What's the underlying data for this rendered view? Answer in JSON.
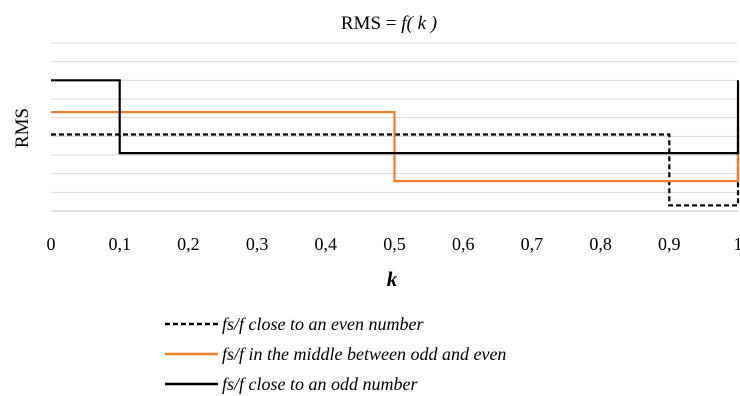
{
  "chart_data": {
    "type": "line",
    "title": "RMS = f( k )",
    "title_prefix": "RMS = ",
    "title_func": "f( k )",
    "xlabel": "k",
    "ylabel": "RMS",
    "xlim": [
      0,
      1
    ],
    "ylim": [
      0,
      9
    ],
    "x_ticks": [
      "0",
      "0,1",
      "0,2",
      "0,3",
      "0,4",
      "0,5",
      "0,6",
      "0,7",
      "0,8",
      "0,9",
      "1"
    ],
    "y_tick_labels": false,
    "grid": "horizontal",
    "legend_position": "bottom",
    "series": [
      {
        "name": "fs/f close to an even number",
        "style": "dashed",
        "color": "#000000",
        "x": [
          0,
          0.9,
          0.9,
          1.0,
          1.0
        ],
        "y": [
          4.1,
          4.1,
          0.3,
          0.3,
          4.5
        ]
      },
      {
        "name": "fs/f in the middle between odd and even",
        "style": "solid",
        "color": "#ED7D31",
        "x": [
          0,
          0.5,
          0.5,
          1.0,
          1.0
        ],
        "y": [
          5.3,
          5.3,
          1.6,
          1.6,
          6.2
        ]
      },
      {
        "name": "fs/f close to an odd number",
        "style": "solid",
        "color": "#000000",
        "x": [
          0,
          0.1,
          0.1,
          1.0,
          1.0
        ],
        "y": [
          7.0,
          7.0,
          3.1,
          3.1,
          7.0
        ]
      }
    ]
  }
}
